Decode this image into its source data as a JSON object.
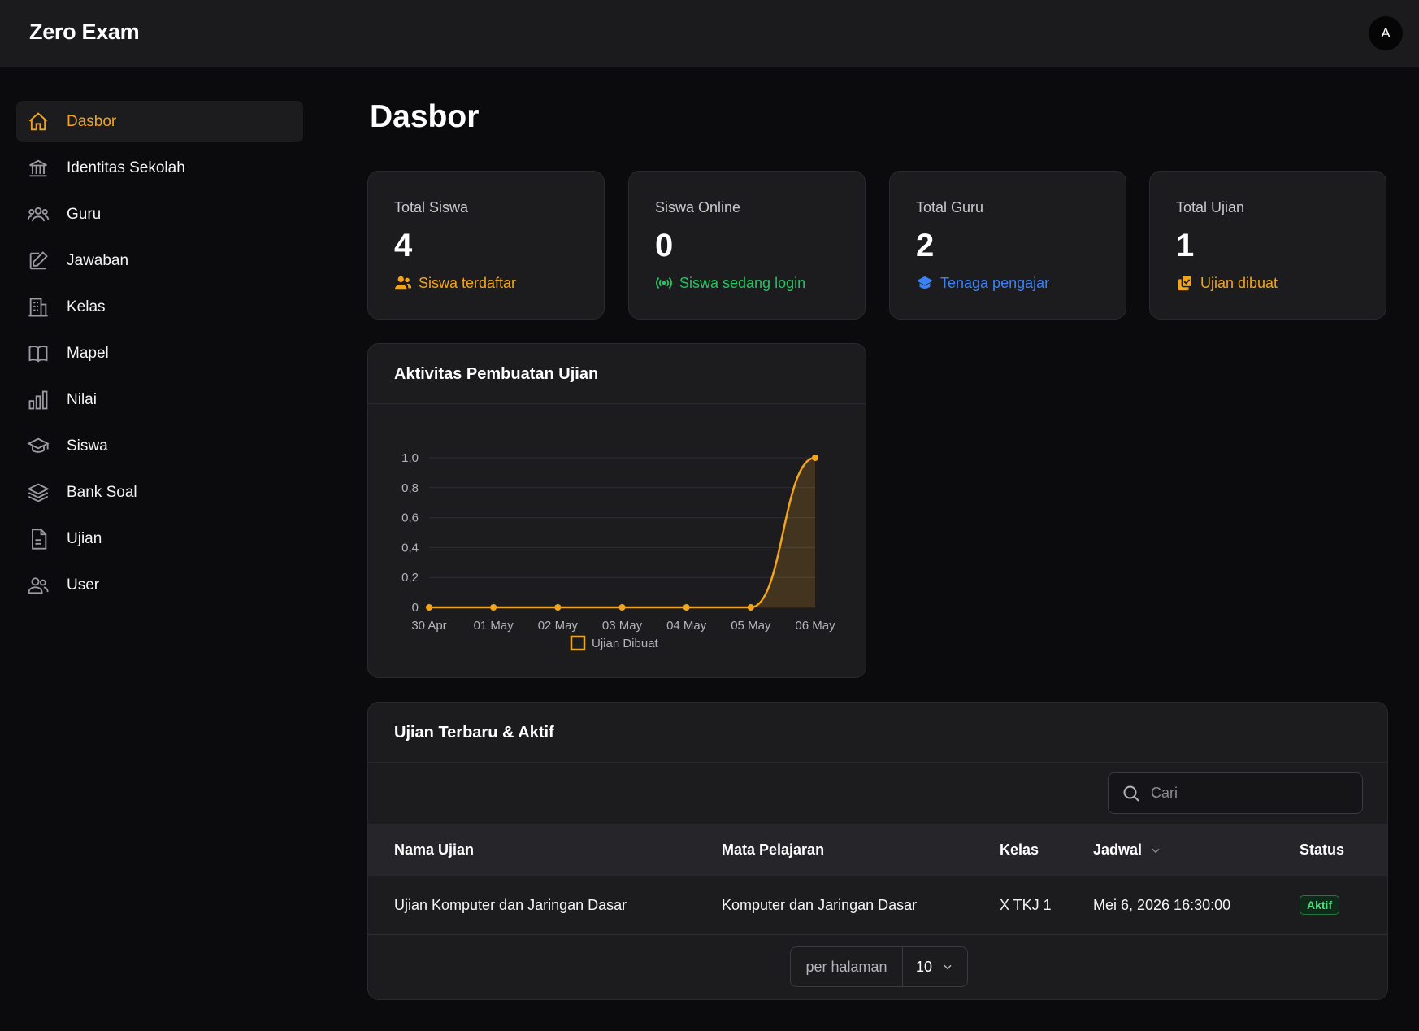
{
  "app": {
    "title": "Zero Exam",
    "avatar_initial": "A"
  },
  "sidebar": {
    "items": [
      {
        "label": "Dasbor",
        "icon": "home-icon",
        "active": true
      },
      {
        "label": "Identitas Sekolah",
        "icon": "building-icon"
      },
      {
        "label": "Guru",
        "icon": "users-group-icon"
      },
      {
        "label": "Jawaban",
        "icon": "edit-icon"
      },
      {
        "label": "Kelas",
        "icon": "office-building-icon"
      },
      {
        "label": "Mapel",
        "icon": "book-icon"
      },
      {
        "label": "Nilai",
        "icon": "bar-chart-icon"
      },
      {
        "label": "Siswa",
        "icon": "graduation-cap-icon"
      },
      {
        "label": "Bank Soal",
        "icon": "layers-icon"
      },
      {
        "label": "Ujian",
        "icon": "document-icon"
      },
      {
        "label": "User",
        "icon": "user-icon"
      }
    ]
  },
  "page": {
    "title": "Dasbor"
  },
  "stats": [
    {
      "label": "Total Siswa",
      "value": "4",
      "foot": "Siswa terdaftar",
      "icon": "users-icon",
      "color": "#f2a51c"
    },
    {
      "label": "Siswa Online",
      "value": "0",
      "foot": "Siswa sedang login",
      "icon": "signal-icon",
      "color": "#22c55e"
    },
    {
      "label": "Total Guru",
      "value": "2",
      "foot": "Tenaga pengajar",
      "icon": "graduation-cap-icon",
      "color": "#3b82f6"
    },
    {
      "label": "Total Ujian",
      "value": "1",
      "foot": "Ujian dibuat",
      "icon": "clipboard-check-icon",
      "color": "#f2a51c"
    }
  ],
  "chart": {
    "title": "Aktivitas Pembuatan Ujian"
  },
  "chart_data": {
    "type": "area",
    "title": "Aktivitas Pembuatan Ujian",
    "categories": [
      "30 Apr",
      "01 May",
      "02 May",
      "03 May",
      "04 May",
      "05 May",
      "06 May"
    ],
    "series": [
      {
        "name": "Ujian Dibuat",
        "values": [
          0,
          0,
          0,
          0,
          0,
          0,
          1
        ],
        "color": "#f2a51c"
      }
    ],
    "yticks": [
      "0",
      "0,2",
      "0,4",
      "0,6",
      "0,8",
      "1,0"
    ],
    "ylim": [
      0,
      1
    ],
    "grid": true,
    "legend": "bottom"
  },
  "table": {
    "title": "Ujian Terbaru & Aktif",
    "search_placeholder": "Cari",
    "columns": [
      "Nama Ujian",
      "Mata Pelajaran",
      "Kelas",
      "Jadwal",
      "Status"
    ],
    "rows": [
      {
        "nama": "Ujian Komputer dan Jaringan Dasar",
        "mapel": "Komputer dan Jaringan Dasar",
        "kelas": "X TKJ 1",
        "jadwal": "Mei 6, 2026 16:30:00",
        "status": "Aktif"
      }
    ],
    "pager": {
      "label": "per halaman",
      "value": "10"
    }
  }
}
